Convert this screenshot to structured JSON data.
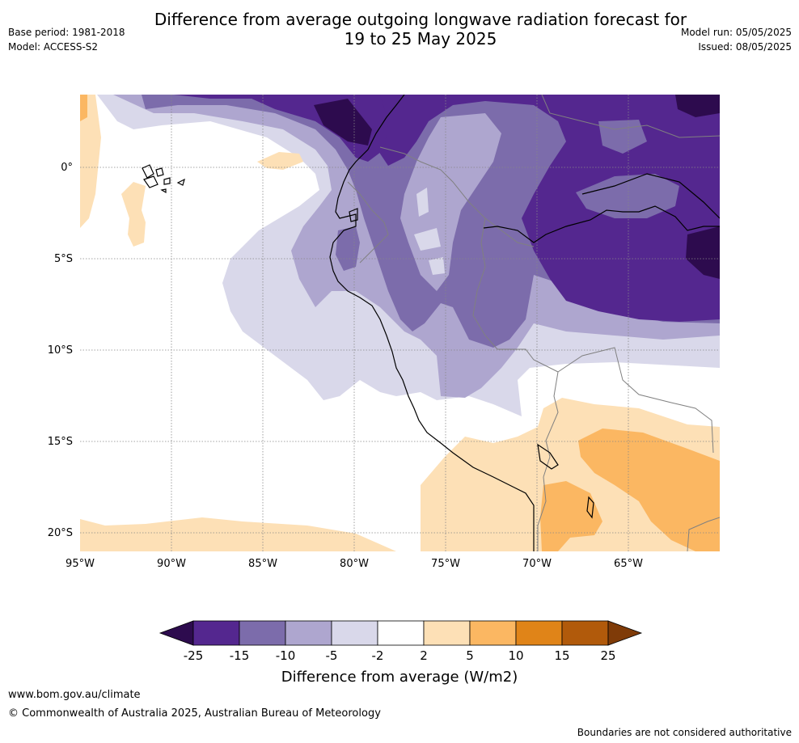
{
  "header": {
    "title_line1": "Difference from average outgoing longwave radiation forecast for",
    "title_line2": "19 to 25 May 2025",
    "base_period": "Base period: 1981-2018",
    "model": "Model: ACCESS-S2",
    "model_run": "Model run: 05/05/2025",
    "issued": "Issued: 08/05/2025"
  },
  "map": {
    "lat_labels": [
      "0°",
      "5°S",
      "10°S",
      "15°S",
      "20°S"
    ],
    "lon_labels": [
      "95°W",
      "90°W",
      "85°W",
      "80°W",
      "75°W",
      "70°W",
      "65°W"
    ],
    "grid": "dotted",
    "ocean_color": "#ffffff",
    "coastline_color": "#000000",
    "border_color": "#808080"
  },
  "colorbar": {
    "title": "Difference from average (W/m2)",
    "tick_labels": [
      "-25",
      "-15",
      "-10",
      "-5",
      "-2",
      "2",
      "5",
      "10",
      "15",
      "25"
    ],
    "colors": [
      "#2d0b4e",
      "#54278f",
      "#7c6cab",
      "#aea6cf",
      "#d9d8ea",
      "#ffffff",
      "#fde0b6",
      "#fbb762",
      "#e08418",
      "#b15a0b",
      "#7f3b08"
    ]
  },
  "footer": {
    "url": "www.bom.gov.au/climate",
    "copyright": "© Commonwealth of Australia 2025, Australian Bureau of Meteorology",
    "disclaimer": "Boundaries are not considered authoritative"
  }
}
